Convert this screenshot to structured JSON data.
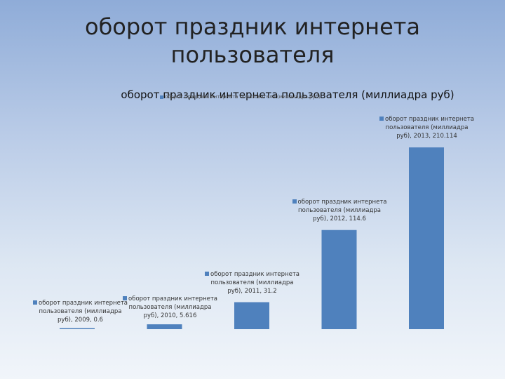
{
  "slide": {
    "title": "оборот праздник интернета пользователя"
  },
  "chart_data": {
    "type": "bar",
    "title": "оборот праздник интернета пользователя (миллиадра руб)",
    "legend": {
      "placement": "top",
      "entry": "оборот праздник интернета пользователя (миллиадра руб)"
    },
    "series": [
      {
        "name": "оборот праздник интернета пользователя (миллиадра руб)",
        "color": "#4f81bd",
        "categories": [
          "2009",
          "2010",
          "2011",
          "2012",
          "2013"
        ],
        "values": [
          0.6,
          5.616,
          31.2,
          114.6,
          210.114
        ]
      }
    ],
    "data_labels": [
      "оборот праздник интернета пользователя (миллиадра руб), 2009, 0.6",
      "оборот праздник интернета пользователя (миллиадра руб), 2010, 5.616",
      "оборот праздник интернета пользователя (миллиадра руб), 2011, 31.2",
      "оборот праздник интернета пользователя (миллиадра руб), 2012, 114.6",
      "оборот праздник интернета пользователя (миллиадра руб), 2013, 210.114"
    ],
    "ylim": [
      0,
      210.114
    ],
    "grid": false,
    "axes_visible": false
  }
}
